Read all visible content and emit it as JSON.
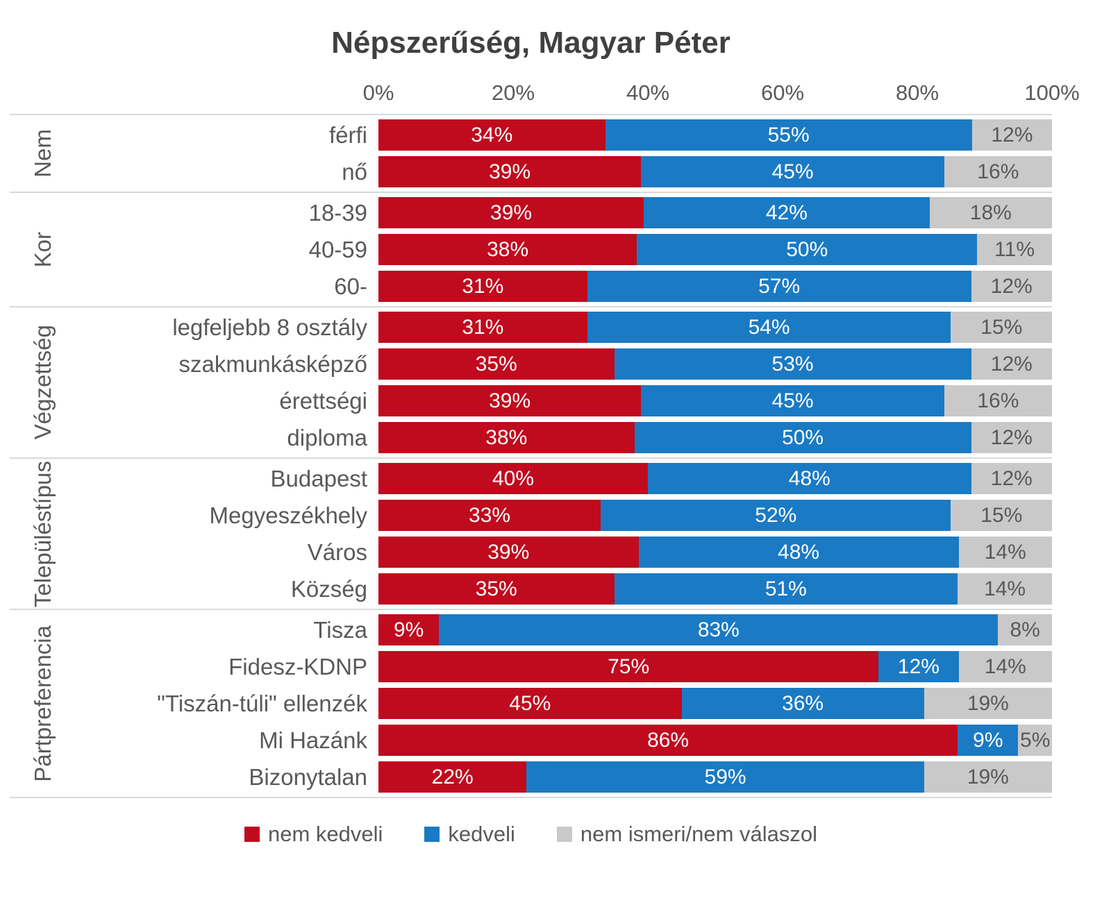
{
  "chart_data": {
    "type": "bar",
    "stacked": true,
    "orientation": "horizontal",
    "title": "Népszerűség, Magyar Péter",
    "x_ticks": [
      "0%",
      "20%",
      "40%",
      "60%",
      "80%",
      "100%"
    ],
    "xlim": [
      0,
      100
    ],
    "grid": false,
    "legend_position": "bottom",
    "series": [
      {
        "key": "nem-kedveli",
        "name": "nem kedveli",
        "color": "#c00a1e",
        "label_color": "#ffffff"
      },
      {
        "key": "kedveli",
        "name": "kedveli",
        "color": "#1b7ac4",
        "label_color": "#ffffff"
      },
      {
        "key": "nem-ismeri",
        "name": "nem ismeri/nem válaszol",
        "color": "#c9c9c9",
        "label_color": "#595959"
      }
    ],
    "groups": [
      {
        "label": "Nem",
        "rows": [
          {
            "label": "férfi",
            "values": [
              34,
              55,
              12
            ]
          },
          {
            "label": "nő",
            "values": [
              39,
              45,
              16
            ]
          }
        ]
      },
      {
        "label": "Kor",
        "rows": [
          {
            "label": "18-39",
            "values": [
              39,
              42,
              18
            ]
          },
          {
            "label": "40-59",
            "values": [
              38,
              50,
              11
            ]
          },
          {
            "label": "60-",
            "values": [
              31,
              57,
              12
            ]
          }
        ]
      },
      {
        "label": "Végzettség",
        "rows": [
          {
            "label": "legfeljebb 8 osztály",
            "values": [
              31,
              54,
              15
            ]
          },
          {
            "label": "szakmunkásképző",
            "values": [
              35,
              53,
              12
            ]
          },
          {
            "label": "érettségi",
            "values": [
              39,
              45,
              16
            ]
          },
          {
            "label": "diploma",
            "values": [
              38,
              50,
              12
            ]
          }
        ]
      },
      {
        "label": "Településtípus",
        "rows": [
          {
            "label": "Budapest",
            "values": [
              40,
              48,
              12
            ]
          },
          {
            "label": "Megyeszékhely",
            "values": [
              33,
              52,
              15
            ]
          },
          {
            "label": "Város",
            "values": [
              39,
              48,
              14
            ]
          },
          {
            "label": "Község",
            "values": [
              35,
              51,
              14
            ]
          }
        ]
      },
      {
        "label": "Pártpreferencia",
        "rows": [
          {
            "label": "Tisza",
            "values": [
              9,
              83,
              8
            ]
          },
          {
            "label": "Fidesz-KDNP",
            "values": [
              75,
              12,
              14
            ]
          },
          {
            "label": "\"Tiszán-túli\" ellenzék",
            "values": [
              45,
              36,
              19
            ]
          },
          {
            "label": "Mi Hazánk",
            "values": [
              86,
              9,
              5
            ]
          },
          {
            "label": "Bizonytalan",
            "values": [
              22,
              59,
              19
            ]
          }
        ]
      }
    ]
  }
}
